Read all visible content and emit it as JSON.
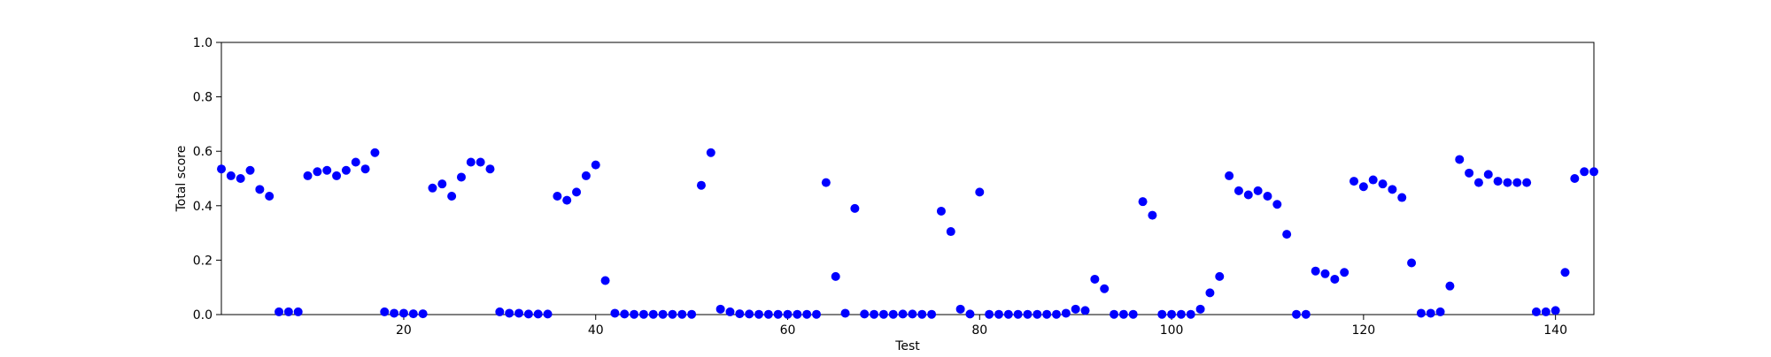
{
  "chart_data": {
    "type": "scatter",
    "title": "",
    "xlabel": "Test",
    "ylabel": "Total score",
    "xlim": [
      1,
      144
    ],
    "ylim": [
      0,
      1.0
    ],
    "xticks": [
      "20",
      "40",
      "60",
      "80",
      "100",
      "120",
      "140"
    ],
    "yticks": [
      "0.0",
      "0.2",
      "0.4",
      "0.6",
      "0.8",
      "1.0"
    ],
    "grid": false,
    "marker_color": "#0000ff",
    "series": [
      {
        "x": [
          1,
          2,
          3,
          4,
          5,
          6,
          7,
          8,
          9,
          10,
          11,
          12,
          13,
          14,
          15,
          16,
          17,
          18,
          19,
          20,
          21,
          22,
          23,
          24,
          25,
          26,
          27,
          28,
          29,
          30,
          31,
          32,
          33,
          34,
          35,
          36,
          37,
          38,
          39,
          40,
          41,
          42,
          43,
          44,
          45,
          46,
          47,
          48,
          49,
          50,
          51,
          52,
          53,
          54,
          55,
          56,
          57,
          58,
          59,
          60,
          61,
          62,
          63,
          64,
          65,
          66,
          67,
          68,
          69,
          70,
          71,
          72,
          73,
          74,
          75,
          76,
          77,
          78,
          79,
          80,
          81,
          82,
          83,
          84,
          85,
          86,
          87,
          88,
          89,
          90,
          91,
          92,
          93,
          94,
          95,
          96,
          97,
          98,
          99,
          100,
          101,
          102,
          103,
          104,
          105,
          106,
          107,
          108,
          109,
          110,
          111,
          112,
          113,
          114,
          115,
          116,
          117,
          118,
          119,
          120,
          121,
          122,
          123,
          124,
          125,
          126,
          127,
          128,
          129,
          130,
          131,
          132,
          133,
          134,
          135,
          136,
          137,
          138,
          139,
          140,
          141,
          142,
          143,
          144
        ],
        "y": [
          0.535,
          0.51,
          0.5,
          0.53,
          0.46,
          0.435,
          0.01,
          0.01,
          0.01,
          0.51,
          0.525,
          0.53,
          0.51,
          0.53,
          0.56,
          0.535,
          0.595,
          0.01,
          0.005,
          0.005,
          0.003,
          0.003,
          0.465,
          0.48,
          0.435,
          0.505,
          0.56,
          0.56,
          0.535,
          0.01,
          0.005,
          0.005,
          0.002,
          0.002,
          0.002,
          0.435,
          0.42,
          0.45,
          0.51,
          0.55,
          0.125,
          0.005,
          0.002,
          0.001,
          0.001,
          0.001,
          0.001,
          0.001,
          0.001,
          0.001,
          0.475,
          0.595,
          0.02,
          0.01,
          0.003,
          0.002,
          0.001,
          0.001,
          0.001,
          0.001,
          0.001,
          0.001,
          0.001,
          0.485,
          0.14,
          0.005,
          0.39,
          0.002,
          0.001,
          0.001,
          0.001,
          0.002,
          0.002,
          0.001,
          0.001,
          0.38,
          0.305,
          0.02,
          0.002,
          0.45,
          0.001,
          0.001,
          0.001,
          0.001,
          0.001,
          0.001,
          0.001,
          0.001,
          0.005,
          0.02,
          0.015,
          0.13,
          0.095,
          0.001,
          0.001,
          0.001,
          0.415,
          0.365,
          0.001,
          0.001,
          0.001,
          0.001,
          0.02,
          0.08,
          0.14,
          0.51,
          0.455,
          0.44,
          0.455,
          0.435,
          0.405,
          0.295,
          0.001,
          0.001,
          0.16,
          0.15,
          0.13,
          0.155,
          0.49,
          0.47,
          0.495,
          0.48,
          0.46,
          0.43,
          0.19,
          0.005,
          0.005,
          0.01,
          0.105,
          0.57,
          0.52,
          0.485,
          0.515,
          0.49,
          0.485,
          0.485,
          0.485,
          0.01,
          0.01,
          0.015,
          0.155,
          0.5,
          0.525,
          0.525
        ]
      }
    ]
  }
}
